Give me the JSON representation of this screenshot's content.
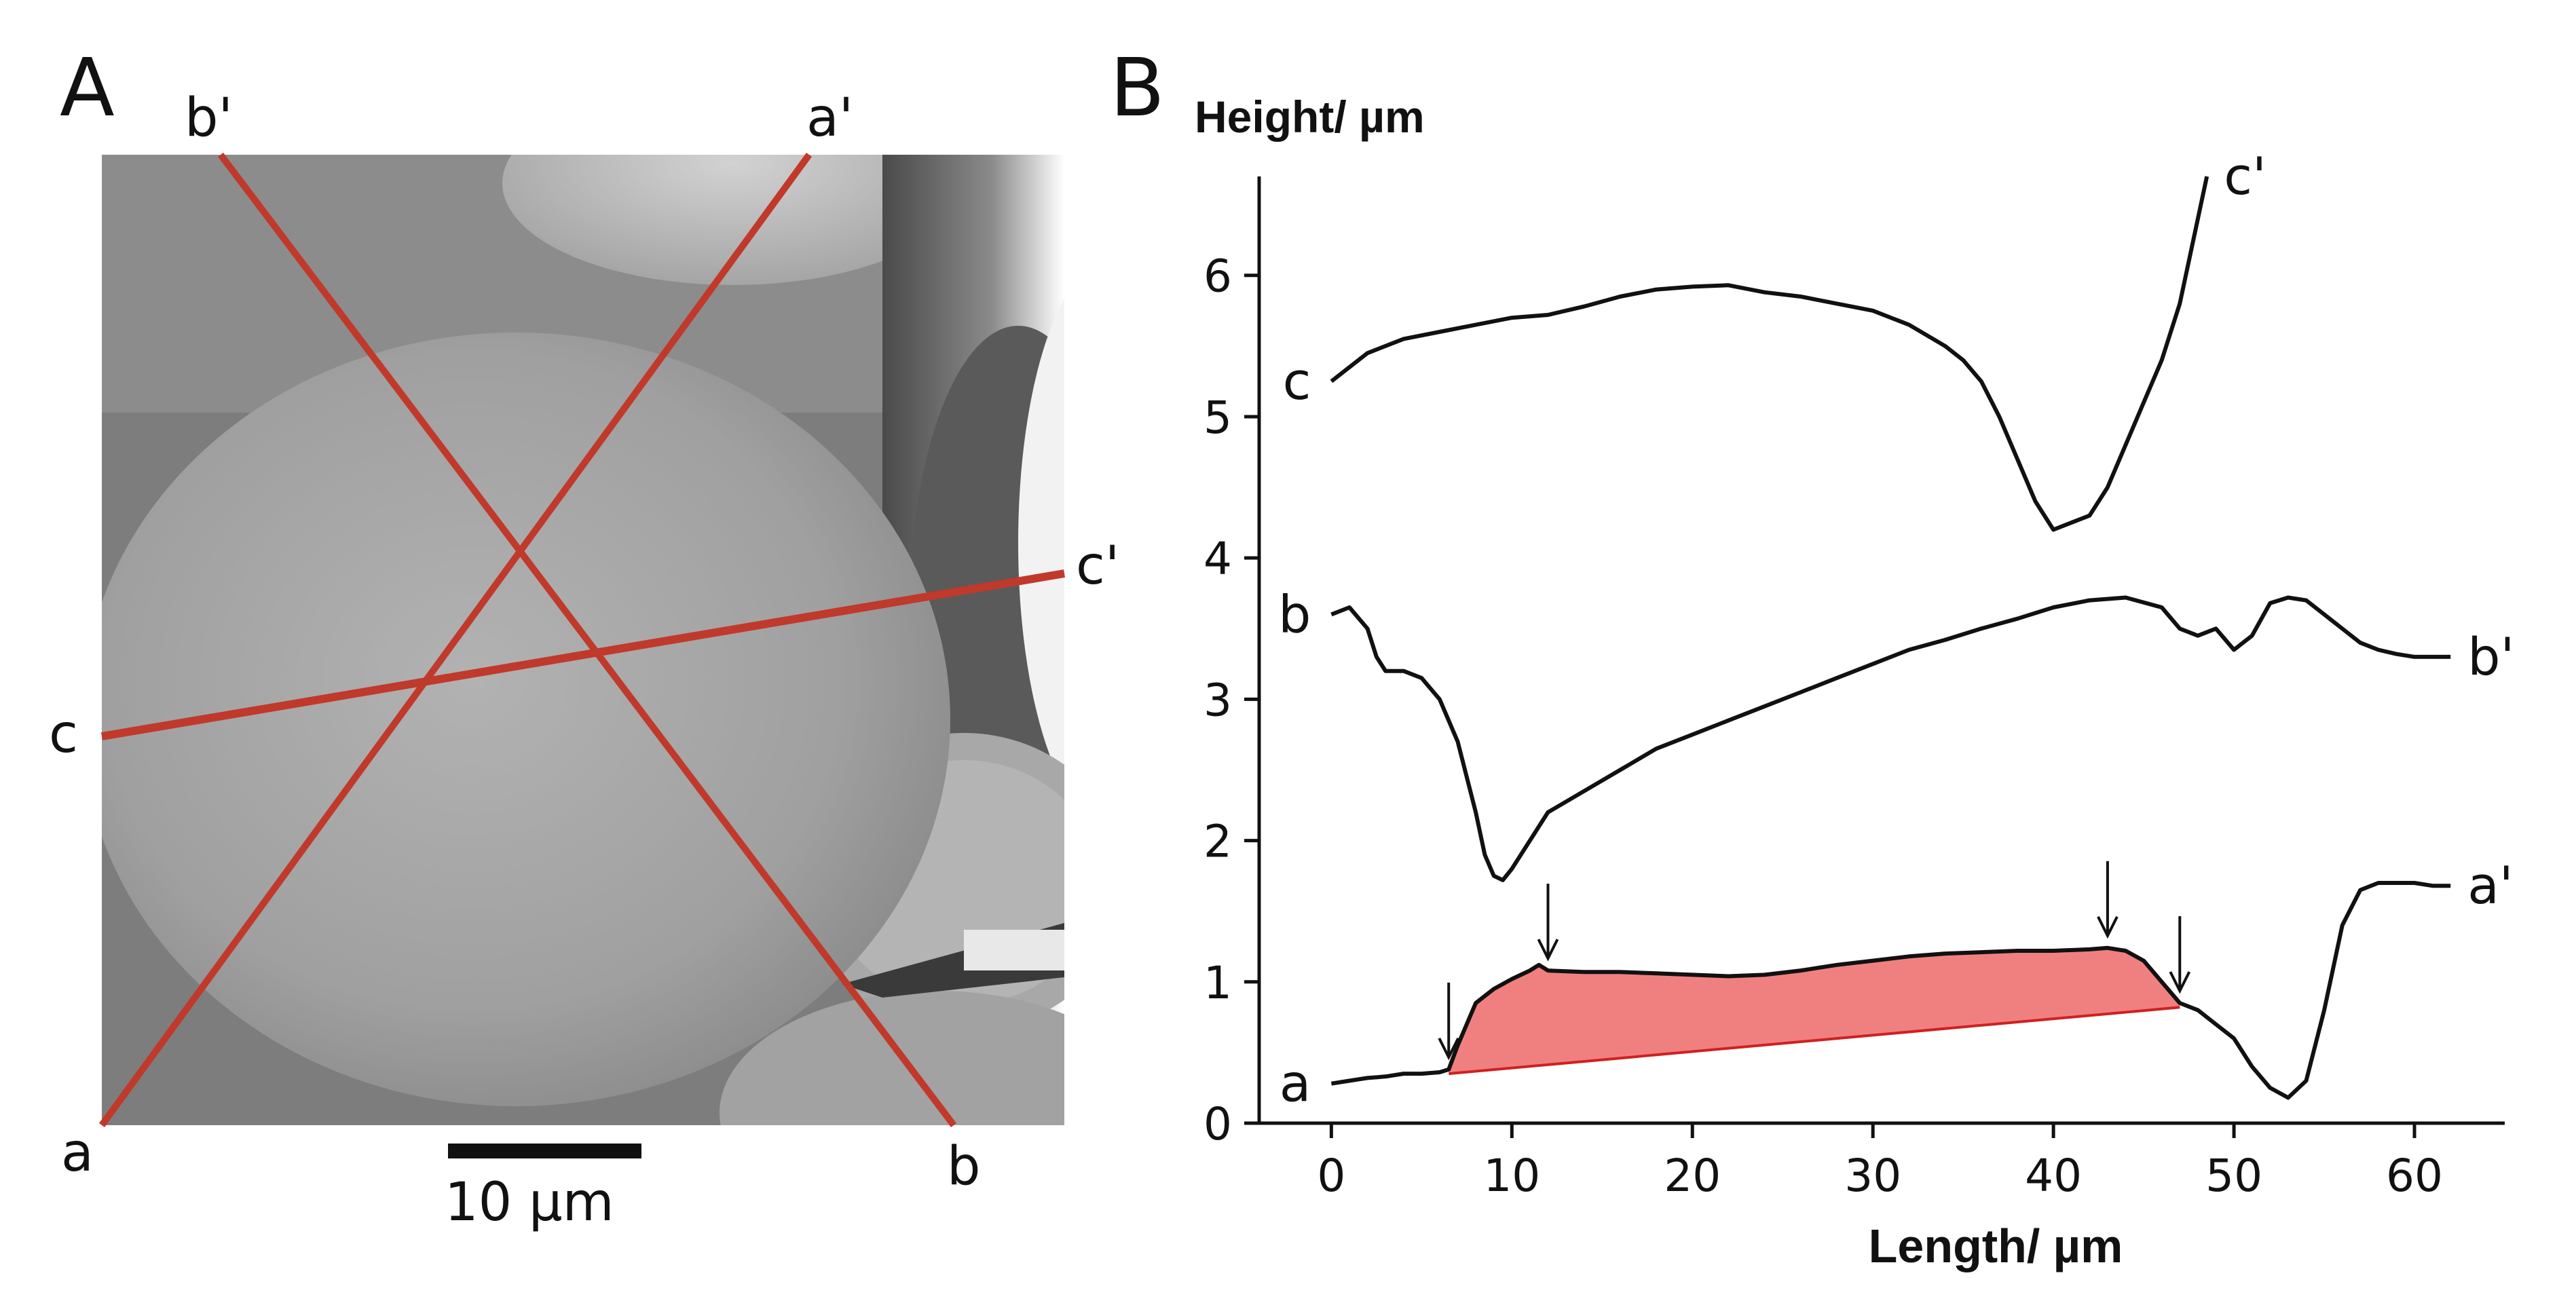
{
  "panel_a": {
    "panel_label": "A",
    "line_labels": {
      "a": "a",
      "a_prime": "a'",
      "b": "b",
      "b_prime": "b'",
      "c": "c",
      "c_prime": "c'"
    },
    "scale_bar_label": "10 µm",
    "line_color": "#c0392b"
  },
  "panel_b": {
    "panel_label": "B"
  },
  "chart_data": {
    "type": "line",
    "title": "",
    "xlabel": "Length/ µm",
    "ylabel": "Height/ µm",
    "xlim": [
      -4,
      65
    ],
    "ylim": [
      0,
      6.7
    ],
    "xticks": [
      "0",
      "10",
      "20",
      "30",
      "40",
      "50",
      "60"
    ],
    "yticks": [
      "0",
      "1",
      "2",
      "3",
      "4",
      "5",
      "6"
    ],
    "fill_color": "#f08080",
    "series": [
      {
        "name": "c-c'",
        "start_label": "c",
        "end_label": "c'",
        "x": [
          0,
          2,
          4,
          6,
          8,
          10,
          12,
          14,
          16,
          18,
          20,
          22,
          24,
          26,
          28,
          30,
          32,
          34,
          35,
          36,
          37,
          38,
          39,
          40,
          41,
          42,
          43,
          44,
          45,
          46,
          47,
          48,
          48.5
        ],
        "y": [
          5.25,
          5.45,
          5.55,
          5.6,
          5.65,
          5.7,
          5.72,
          5.78,
          5.85,
          5.9,
          5.92,
          5.93,
          5.88,
          5.85,
          5.8,
          5.75,
          5.65,
          5.5,
          5.4,
          5.25,
          5.0,
          4.7,
          4.4,
          4.2,
          4.25,
          4.3,
          4.5,
          4.8,
          5.1,
          5.4,
          5.8,
          6.4,
          6.7
        ]
      },
      {
        "name": "b-b'",
        "start_label": "b",
        "end_label": "b'",
        "x": [
          0,
          1,
          2,
          2.5,
          3,
          4,
          5,
          6,
          7,
          8,
          8.5,
          9,
          9.5,
          10,
          11,
          12,
          14,
          16,
          18,
          20,
          22,
          24,
          26,
          28,
          30,
          32,
          34,
          36,
          38,
          40,
          42,
          44,
          46,
          47,
          48,
          49,
          50,
          51,
          52,
          53,
          54,
          55,
          56,
          57,
          58,
          59,
          60,
          61,
          62
        ],
        "y": [
          3.6,
          3.65,
          3.5,
          3.3,
          3.2,
          3.2,
          3.15,
          3.0,
          2.7,
          2.2,
          1.9,
          1.75,
          1.72,
          1.8,
          2.0,
          2.2,
          2.35,
          2.5,
          2.65,
          2.75,
          2.85,
          2.95,
          3.05,
          3.15,
          3.25,
          3.35,
          3.42,
          3.5,
          3.57,
          3.65,
          3.7,
          3.72,
          3.65,
          3.5,
          3.45,
          3.5,
          3.35,
          3.45,
          3.68,
          3.72,
          3.7,
          3.6,
          3.5,
          3.4,
          3.35,
          3.32,
          3.3,
          3.3,
          3.3
        ]
      },
      {
        "name": "a-a'",
        "start_label": "a",
        "end_label": "a'",
        "x": [
          0,
          1,
          2,
          3,
          4,
          5,
          6,
          6.5,
          7,
          8,
          9,
          10,
          11,
          11.5,
          12,
          14,
          16,
          18,
          20,
          22,
          24,
          26,
          28,
          30,
          32,
          34,
          36,
          38,
          40,
          42,
          43,
          44,
          45,
          46,
          47,
          48,
          49,
          50,
          51,
          52,
          53,
          54,
          55,
          56,
          57,
          58,
          59,
          60,
          61,
          62
        ],
        "y": [
          0.28,
          0.3,
          0.32,
          0.33,
          0.35,
          0.35,
          0.36,
          0.38,
          0.55,
          0.85,
          0.95,
          1.02,
          1.08,
          1.12,
          1.08,
          1.07,
          1.07,
          1.06,
          1.05,
          1.04,
          1.05,
          1.08,
          1.12,
          1.15,
          1.18,
          1.2,
          1.21,
          1.22,
          1.22,
          1.23,
          1.24,
          1.22,
          1.15,
          1.0,
          0.85,
          0.8,
          0.7,
          0.6,
          0.4,
          0.25,
          0.18,
          0.3,
          0.8,
          1.4,
          1.65,
          1.7,
          1.7,
          1.7,
          1.68,
          1.68
        ]
      }
    ],
    "shaded_region": {
      "x": [
        6.5,
        7,
        8,
        9,
        10,
        11,
        11.5,
        12,
        14,
        16,
        18,
        20,
        22,
        24,
        26,
        28,
        30,
        32,
        34,
        36,
        38,
        40,
        42,
        43,
        44,
        45,
        46,
        47
      ],
      "y_top": [
        0.38,
        0.55,
        0.85,
        0.95,
        1.02,
        1.08,
        1.12,
        1.08,
        1.07,
        1.07,
        1.06,
        1.05,
        1.04,
        1.05,
        1.08,
        1.12,
        1.15,
        1.18,
        1.2,
        1.21,
        1.22,
        1.22,
        1.23,
        1.24,
        1.22,
        1.15,
        1.0,
        0.85
      ],
      "baseline_start": [
        6.5,
        0.35
      ],
      "baseline_end": [
        47,
        0.82
      ]
    },
    "arrows_x": [
      6.5,
      12,
      43,
      47
    ]
  }
}
